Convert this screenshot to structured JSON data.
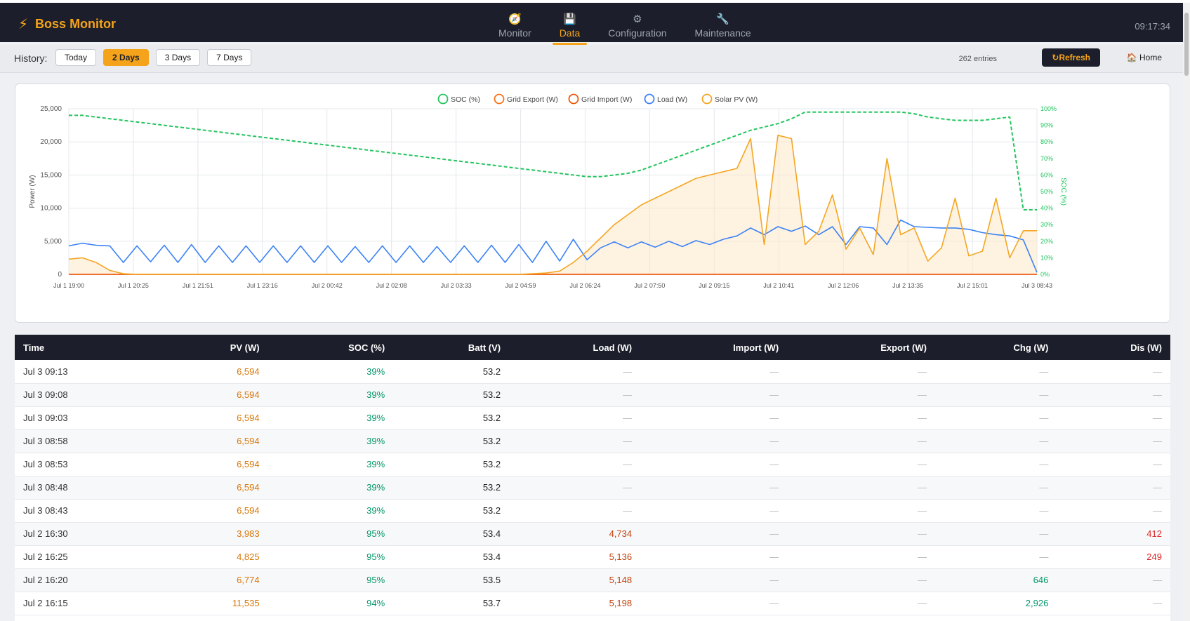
{
  "app": {
    "title": "Boss Monitor",
    "clock": "09:17:34"
  },
  "nav": [
    {
      "label": "Monitor",
      "icon": "gauge-icon",
      "active": false
    },
    {
      "label": "Data",
      "icon": "floppy-disk-icon",
      "active": true
    },
    {
      "label": "Configuration",
      "icon": "gear-icon",
      "active": false
    },
    {
      "label": "Maintenance",
      "icon": "wrench-icon",
      "active": false
    }
  ],
  "history": {
    "label": "History:",
    "buttons": [
      {
        "label": "Today",
        "active": false
      },
      {
        "label": "2 Days",
        "active": true
      },
      {
        "label": "3 Days",
        "active": false
      },
      {
        "label": "7 Days",
        "active": false
      }
    ],
    "entries": "262 entries",
    "refresh_label": "Refresh",
    "home_label": "Home"
  },
  "colors": {
    "accent": "#f5a31a",
    "dark": "#1c1f2b",
    "soc": "#22c55e",
    "load": "#3b82f6",
    "export": "#f97316",
    "import": "#ea580c",
    "solar": "#f5a623"
  },
  "chart_data": {
    "type": "line",
    "xlabel": "",
    "ylabel": "Power (W)",
    "y2label": "SOC (%)",
    "ylim": [
      0,
      25000
    ],
    "y2lim": [
      0,
      100
    ],
    "yticks": [
      "0",
      "5,000",
      "10,000",
      "15,000",
      "20,000",
      "25,000"
    ],
    "y2ticks": [
      "0%",
      "10%",
      "20%",
      "30%",
      "40%",
      "50%",
      "60%",
      "70%",
      "80%",
      "90%",
      "100%"
    ],
    "x_tick_labels": [
      "Jul 1 19:00",
      "Jul 1 20:25",
      "Jul 1 21:51",
      "Jul 1 23:16",
      "Jul 2 00:42",
      "Jul 2 02:08",
      "Jul 2 03:33",
      "Jul 2 04:59",
      "Jul 2 06:24",
      "Jul 2 07:50",
      "Jul 2 09:15",
      "Jul 2 10:41",
      "Jul 2 12:06",
      "Jul 2 13:35",
      "Jul 2 15:01",
      "Jul 3 08:43"
    ],
    "grid": true,
    "legend_position": "top",
    "legend": [
      "SOC (%)",
      "Grid Export (W)",
      "Grid Import (W)",
      "Load (W)",
      "Solar PV (W)"
    ],
    "series": [
      {
        "name": "SOC (%)",
        "axis": "right",
        "style": "dashed",
        "values": [
          96,
          96,
          95,
          94,
          93,
          92,
          91,
          90,
          89,
          88,
          87,
          86,
          85,
          84,
          83,
          82,
          81,
          80,
          79,
          78,
          77,
          76,
          75,
          74,
          73,
          72,
          71,
          70,
          69,
          68,
          67,
          66,
          65,
          64,
          63,
          62,
          61,
          60,
          59,
          59,
          60,
          61,
          63,
          66,
          69,
          72,
          75,
          78,
          81,
          84,
          87,
          89,
          91,
          94,
          98,
          98,
          98,
          98,
          98,
          98,
          98,
          98,
          97,
          95,
          94,
          93,
          93,
          93,
          94,
          95,
          39,
          39
        ]
      },
      {
        "name": "Grid Export (W)",
        "axis": "left",
        "style": "solid",
        "values": [
          0,
          0,
          0,
          0,
          0,
          0,
          0,
          0,
          0,
          0,
          0,
          0,
          0,
          0,
          0,
          0,
          0,
          0,
          0,
          0,
          0,
          0,
          0,
          0,
          0,
          0,
          0,
          0,
          0,
          0,
          0,
          0,
          0,
          0,
          0,
          0,
          0,
          0,
          0,
          0,
          0,
          0,
          0,
          0,
          0,
          0,
          0,
          0,
          0,
          0,
          0,
          0,
          0,
          0,
          0,
          0,
          0,
          0,
          0,
          0,
          0,
          0,
          0,
          0,
          0,
          0,
          0,
          0,
          0,
          0,
          0,
          0
        ]
      },
      {
        "name": "Grid Import (W)",
        "axis": "left",
        "style": "solid",
        "values": [
          0,
          0,
          0,
          0,
          0,
          0,
          0,
          0,
          0,
          0,
          0,
          0,
          0,
          0,
          0,
          0,
          0,
          0,
          0,
          0,
          0,
          0,
          0,
          0,
          0,
          0,
          0,
          0,
          0,
          0,
          0,
          0,
          0,
          0,
          0,
          0,
          0,
          0,
          0,
          0,
          0,
          0,
          0,
          0,
          0,
          0,
          0,
          0,
          0,
          0,
          0,
          0,
          0,
          0,
          0,
          0,
          0,
          0,
          0,
          0,
          0,
          0,
          0,
          0,
          0,
          0,
          0,
          0,
          0,
          0,
          0,
          0
        ]
      },
      {
        "name": "Load (W)",
        "axis": "left",
        "style": "solid",
        "values": [
          4300,
          4700,
          4400,
          4300,
          1800,
          4300,
          1900,
          4400,
          1800,
          4500,
          1800,
          4300,
          1800,
          4300,
          1800,
          4300,
          1800,
          4300,
          1800,
          4300,
          1800,
          4200,
          1800,
          4300,
          1800,
          4300,
          1800,
          4200,
          1800,
          4300,
          1800,
          4400,
          1800,
          4500,
          1800,
          5000,
          2000,
          5300,
          2200,
          4000,
          4900,
          4000,
          4900,
          4100,
          5000,
          4200,
          5100,
          4500,
          5300,
          5800,
          7000,
          6000,
          7200,
          6500,
          7300,
          6000,
          7200,
          4500,
          7200,
          7000,
          4500,
          8200,
          7200,
          7100,
          7000,
          7000,
          6800,
          6300,
          6000,
          5800,
          5200,
          300
        ]
      },
      {
        "name": "Solar PV (W)",
        "axis": "left",
        "style": "solid",
        "filled": true,
        "values": [
          2300,
          2500,
          1800,
          600,
          100,
          0,
          0,
          0,
          0,
          0,
          0,
          0,
          0,
          0,
          0,
          0,
          0,
          0,
          0,
          0,
          0,
          0,
          0,
          0,
          0,
          0,
          0,
          0,
          0,
          0,
          0,
          0,
          0,
          0,
          100,
          200,
          500,
          1800,
          3500,
          5500,
          7500,
          9000,
          10500,
          11500,
          12500,
          13500,
          14500,
          15000,
          15500,
          16000,
          20500,
          4500,
          21000,
          20500,
          4500,
          6500,
          12000,
          3800,
          7000,
          3000,
          17500,
          6000,
          7000,
          2000,
          4000,
          11500,
          2800,
          3500,
          11500,
          2500,
          6594,
          6594
        ]
      }
    ]
  },
  "table": {
    "columns": [
      "Time",
      "PV (W)",
      "SOC (%)",
      "Batt (V)",
      "Load (W)",
      "Import (W)",
      "Export (W)",
      "Chg (W)",
      "Dis (W)"
    ],
    "rows": [
      [
        "Jul 3 09:13",
        "6,594",
        "39%",
        "53.2",
        "—",
        "—",
        "—",
        "—",
        "—"
      ],
      [
        "Jul 3 09:08",
        "6,594",
        "39%",
        "53.2",
        "—",
        "—",
        "—",
        "—",
        "—"
      ],
      [
        "Jul 3 09:03",
        "6,594",
        "39%",
        "53.2",
        "—",
        "—",
        "—",
        "—",
        "—"
      ],
      [
        "Jul 3 08:58",
        "6,594",
        "39%",
        "53.2",
        "—",
        "—",
        "—",
        "—",
        "—"
      ],
      [
        "Jul 3 08:53",
        "6,594",
        "39%",
        "53.2",
        "—",
        "—",
        "—",
        "—",
        "—"
      ],
      [
        "Jul 3 08:48",
        "6,594",
        "39%",
        "53.2",
        "—",
        "—",
        "—",
        "—",
        "—"
      ],
      [
        "Jul 3 08:43",
        "6,594",
        "39%",
        "53.2",
        "—",
        "—",
        "—",
        "—",
        "—"
      ],
      [
        "Jul 2 16:30",
        "3,983",
        "95%",
        "53.4",
        "4,734",
        "—",
        "—",
        "—",
        "412"
      ],
      [
        "Jul 2 16:25",
        "4,825",
        "95%",
        "53.4",
        "5,136",
        "—",
        "—",
        "—",
        "249"
      ],
      [
        "Jul 2 16:20",
        "6,774",
        "95%",
        "53.5",
        "5,148",
        "—",
        "—",
        "646",
        "—"
      ],
      [
        "Jul 2 16:15",
        "11,535",
        "94%",
        "53.7",
        "5,198",
        "—",
        "—",
        "2,926",
        "—"
      ]
    ]
  }
}
